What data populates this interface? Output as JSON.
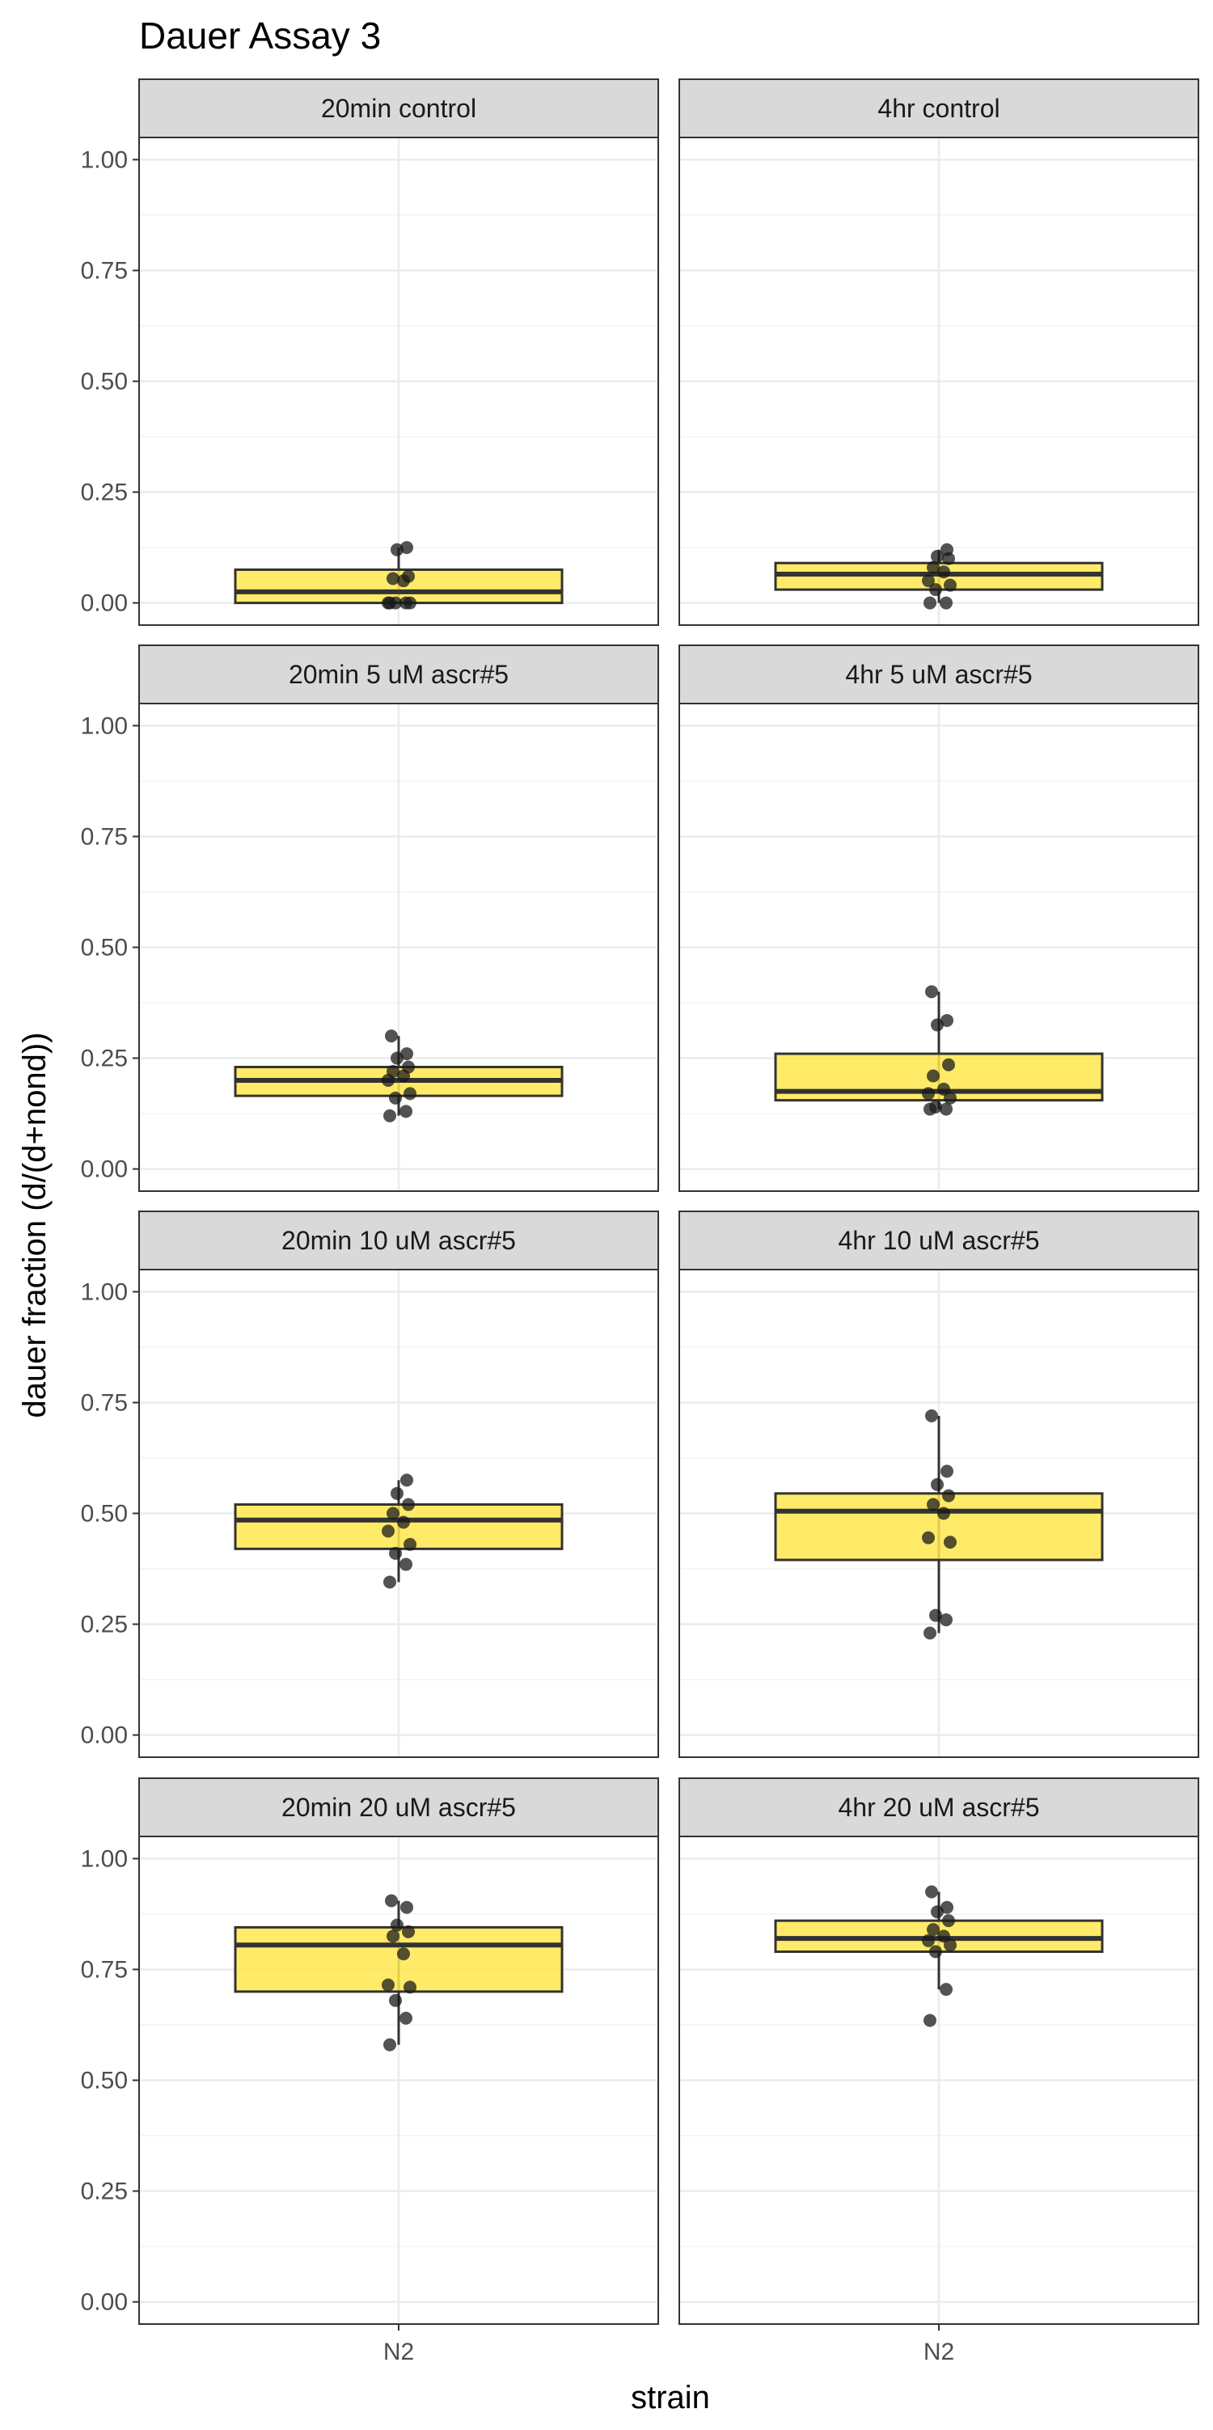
{
  "chart_data": {
    "type": "box",
    "title": "Dauer Assay 3",
    "xlabel": "strain",
    "ylabel": "dauer fraction (d/(d+nond))",
    "categories": [
      "N2"
    ],
    "ylim": [
      -0.05,
      1.05
    ],
    "y_ticks": [
      0.0,
      0.25,
      0.5,
      0.75,
      1.0
    ],
    "y_tick_labels": [
      "0.00",
      "0.25",
      "0.50",
      "0.75",
      "1.00"
    ],
    "grid": true,
    "legend": "none",
    "colors": {
      "box_fill": "#ffe84d",
      "box_line": "#333333",
      "point": "#1a1a1a",
      "strip_bg": "#d9d9d9",
      "grid_major": "#ebebeb",
      "grid_minor": "#f3f3f3",
      "panel_border": "#333333"
    },
    "panels": [
      {
        "label": "20min control",
        "box": {
          "min": 0.0,
          "q1": 0.0,
          "median": 0.025,
          "q3": 0.075,
          "max": 0.125
        },
        "points": [
          0.0,
          0.0,
          0.0,
          0.0,
          0.0,
          0.05,
          0.055,
          0.06,
          0.12,
          0.125
        ]
      },
      {
        "label": "4hr control",
        "box": {
          "min": 0.0,
          "q1": 0.03,
          "median": 0.065,
          "q3": 0.09,
          "max": 0.12
        },
        "points": [
          0.0,
          0.0,
          0.03,
          0.04,
          0.05,
          0.07,
          0.08,
          0.1,
          0.105,
          0.12
        ]
      },
      {
        "label": "20min 5 uM ascr#5",
        "box": {
          "min": 0.12,
          "q1": 0.165,
          "median": 0.2,
          "q3": 0.23,
          "max": 0.3
        },
        "points": [
          0.12,
          0.13,
          0.16,
          0.17,
          0.2,
          0.21,
          0.22,
          0.23,
          0.25,
          0.26,
          0.3
        ]
      },
      {
        "label": "4hr 5 uM ascr#5",
        "box": {
          "min": 0.135,
          "q1": 0.155,
          "median": 0.175,
          "q3": 0.26,
          "max": 0.4
        },
        "points": [
          0.135,
          0.135,
          0.14,
          0.16,
          0.17,
          0.18,
          0.21,
          0.235,
          0.325,
          0.335,
          0.4
        ]
      },
      {
        "label": "20min 10 uM ascr#5",
        "box": {
          "min": 0.345,
          "q1": 0.42,
          "median": 0.485,
          "q3": 0.52,
          "max": 0.575
        },
        "points": [
          0.345,
          0.385,
          0.41,
          0.43,
          0.46,
          0.48,
          0.5,
          0.52,
          0.545,
          0.575
        ]
      },
      {
        "label": "4hr 10 uM ascr#5",
        "box": {
          "min": 0.23,
          "q1": 0.395,
          "median": 0.505,
          "q3": 0.545,
          "max": 0.72
        },
        "points": [
          0.23,
          0.26,
          0.27,
          0.435,
          0.445,
          0.5,
          0.52,
          0.54,
          0.565,
          0.595,
          0.72
        ]
      },
      {
        "label": "20min 20 uM ascr#5",
        "box": {
          "min": 0.58,
          "q1": 0.7,
          "median": 0.805,
          "q3": 0.845,
          "max": 0.905
        },
        "points": [
          0.58,
          0.64,
          0.68,
          0.71,
          0.715,
          0.785,
          0.825,
          0.835,
          0.85,
          0.89,
          0.905
        ]
      },
      {
        "label": "4hr 20 uM ascr#5",
        "box": {
          "min": 0.705,
          "q1": 0.79,
          "median": 0.82,
          "q3": 0.86,
          "max": 0.925
        },
        "points": [
          0.635,
          0.705,
          0.79,
          0.805,
          0.815,
          0.825,
          0.84,
          0.86,
          0.88,
          0.89,
          0.925
        ]
      }
    ]
  }
}
